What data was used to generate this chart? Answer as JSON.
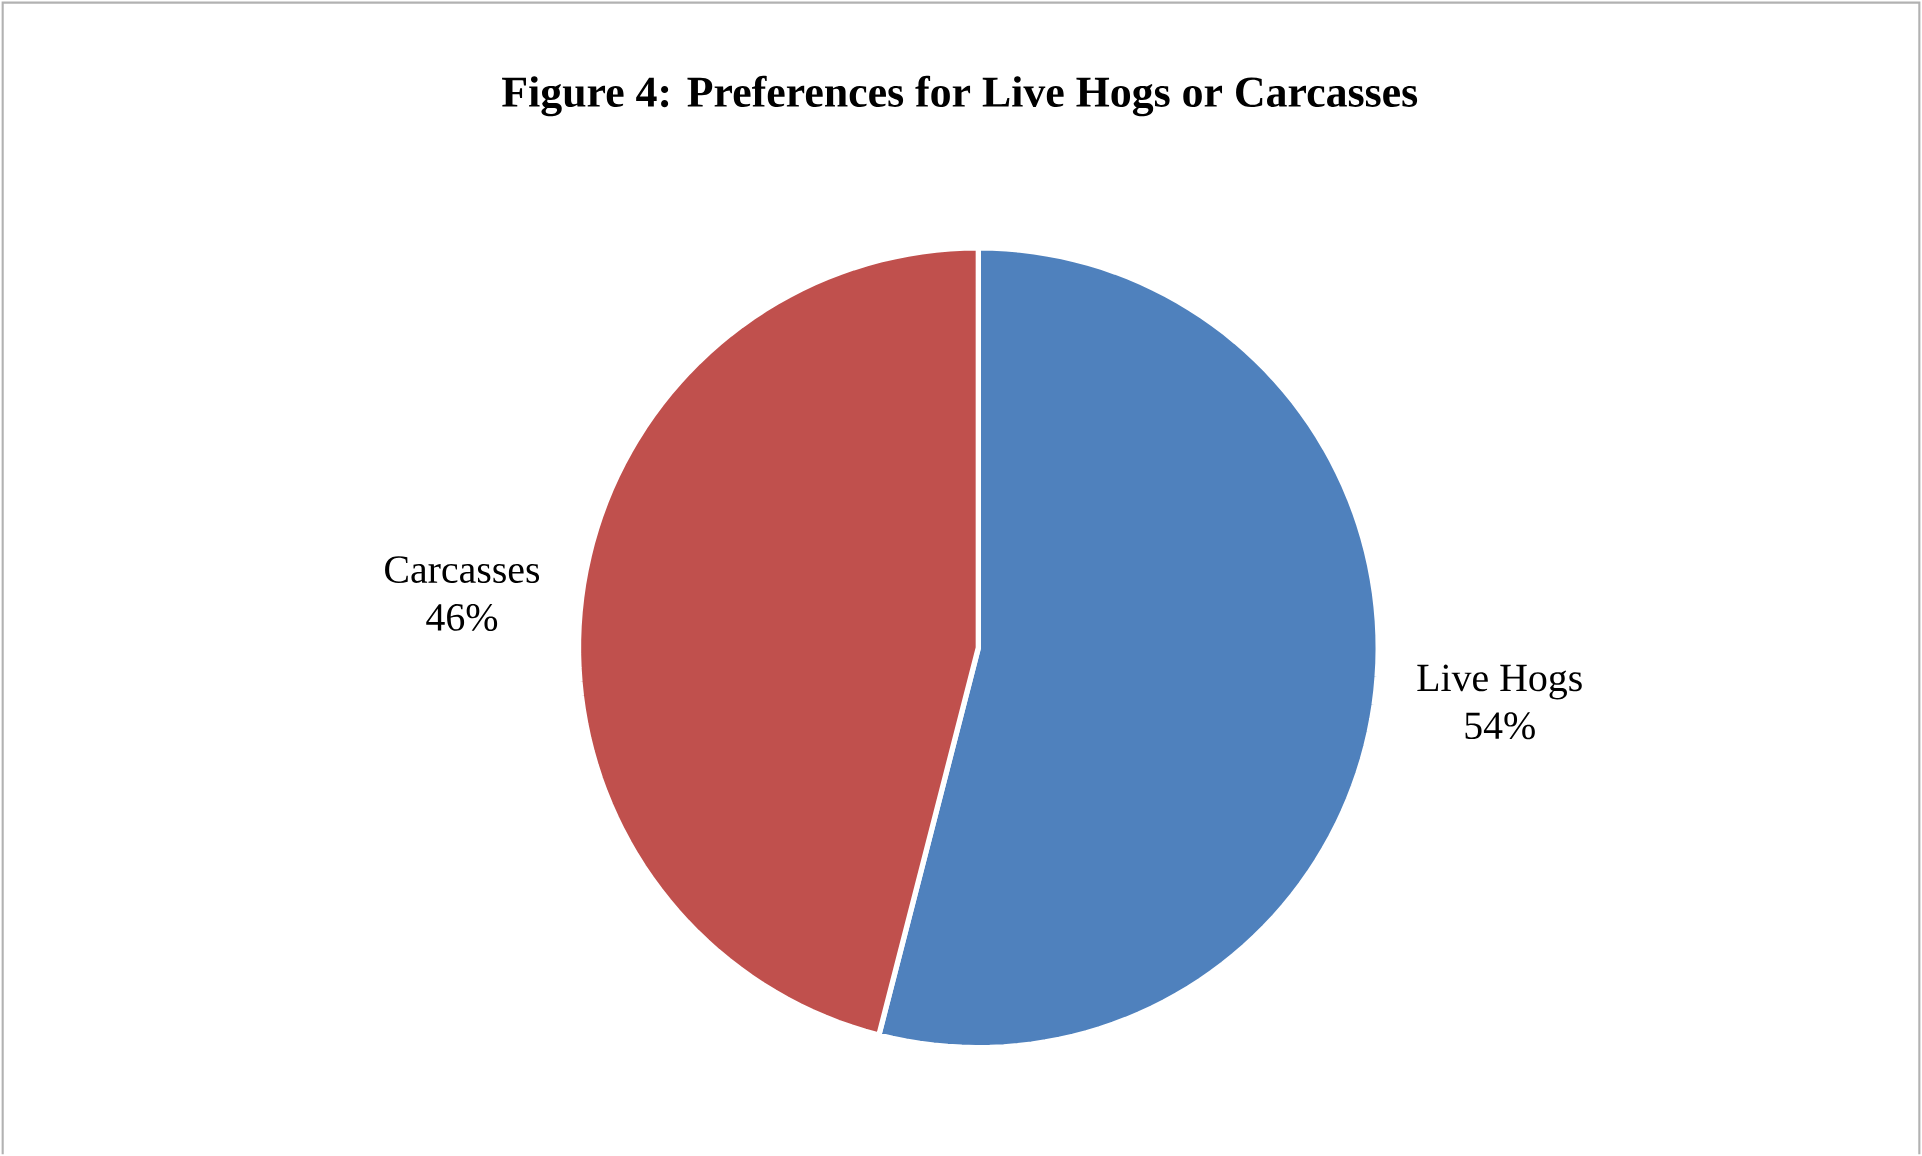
{
  "chart_data": {
    "type": "pie",
    "title": "Figure 4:  Preferences for Live Hogs or Carcasses",
    "categories": [
      "Live Hogs",
      "Carcasses"
    ],
    "values": [
      54,
      46
    ],
    "value_labels": [
      "54%",
      "46%"
    ],
    "colors": [
      "#4f81bd",
      "#c0504d"
    ],
    "legend": false
  }
}
